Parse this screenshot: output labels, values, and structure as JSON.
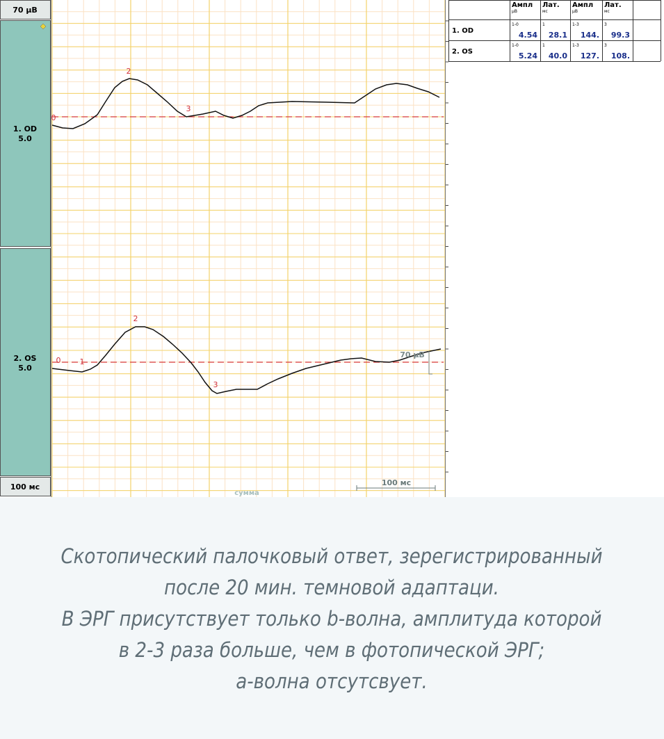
{
  "sidebar": {
    "amplitude_scale": "70 µВ",
    "channels": [
      {
        "label": "1. OD",
        "gain": "5.0"
      },
      {
        "label": "2. OS",
        "gain": "5.0"
      }
    ],
    "time_scale": "100 мс"
  },
  "plot": {
    "traces": [
      {
        "markers": [
          "0",
          "2",
          "3"
        ]
      },
      {
        "markers": [
          "0",
          "1",
          "2",
          "3"
        ]
      }
    ],
    "amplitude_bar": "70 µВ",
    "time_bar": "100 мс",
    "footer": "сумма"
  },
  "table": {
    "columns": [
      {
        "title": "Ампл",
        "unit": "µВ"
      },
      {
        "title": "Лат.",
        "unit": "мс"
      },
      {
        "title": "Ампл",
        "unit": "µВ"
      },
      {
        "title": "Лат.",
        "unit": "мс"
      }
    ],
    "rows": [
      {
        "name": "1. OD",
        "cells": [
          {
            "sub": "1-0",
            "value": "4.54"
          },
          {
            "sub": "1",
            "value": "28.1"
          },
          {
            "sub": "1-3",
            "value": "144."
          },
          {
            "sub": "3",
            "value": "99.3"
          }
        ]
      },
      {
        "name": "2. OS",
        "cells": [
          {
            "sub": "1-0",
            "value": "5.24"
          },
          {
            "sub": "1",
            "value": "40.0"
          },
          {
            "sub": "1-3",
            "value": "127."
          },
          {
            "sub": "3",
            "value": "108."
          }
        ]
      }
    ]
  },
  "caption": [
    "Скотопический палочковый ответ, зерегистрированный",
    "после 20 мин. темновой адаптаци.",
    "В ЭРГ присутствует только b-волна,  амплитуда которой",
    "в 2-3 раза больше, чем в фотопической ЭРГ;",
    "а-волна отсутсвует."
  ]
}
